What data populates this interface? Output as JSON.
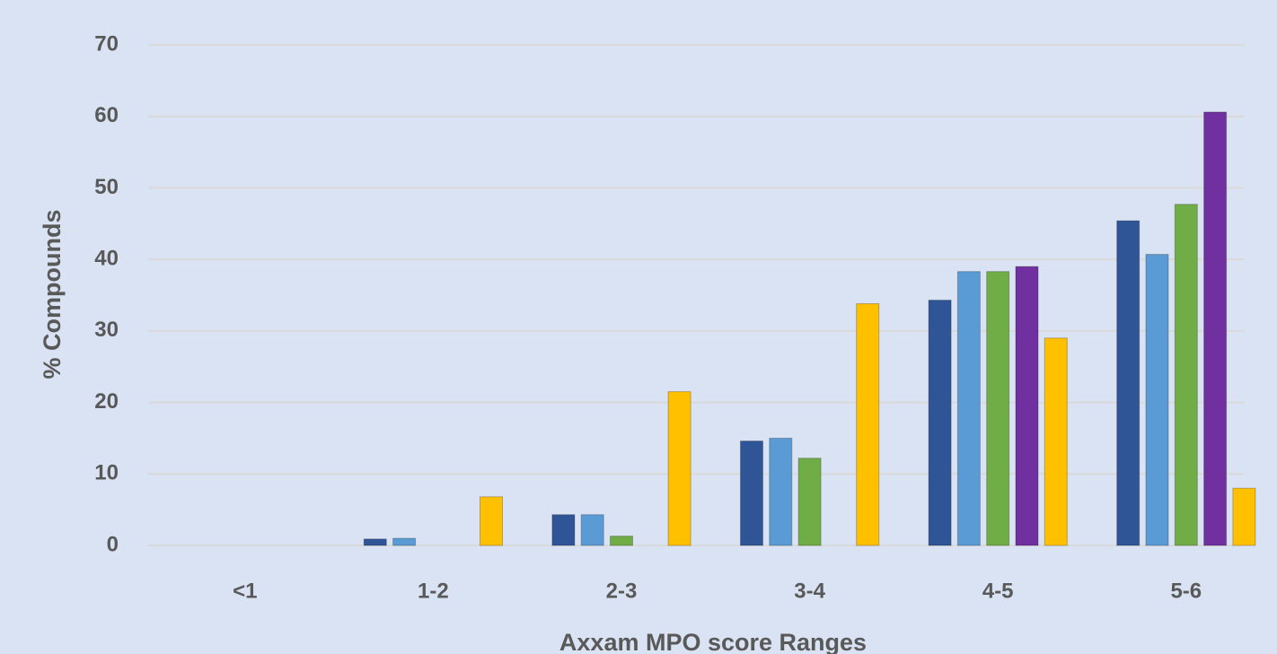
{
  "chart_data": {
    "type": "bar",
    "x_label": "Axxam MPO score Ranges",
    "y_label": "% Compounds",
    "categories": [
      "<1",
      "1-2",
      "2-3",
      "3-4",
      "4-5",
      "5-6"
    ],
    "series": [
      {
        "color": "#2f5597",
        "values": [
          0,
          0.9,
          4.3,
          14.6,
          34.3,
          45.4
        ]
      },
      {
        "color": "#5b9bd5",
        "values": [
          0,
          1,
          4.3,
          15,
          38.3,
          40.7
        ]
      },
      {
        "color": "#70ad47",
        "values": [
          0,
          0,
          1.3,
          12.2,
          38.3,
          47.7
        ]
      },
      {
        "color": "#7030a0",
        "values": [
          0,
          0,
          0,
          0,
          39,
          60.6
        ]
      },
      {
        "color": "#ffc000",
        "values": [
          0,
          6.8,
          21.5,
          33.8,
          29,
          8
        ]
      }
    ],
    "ylim": [
      0,
      70
    ],
    "yticks": [
      0,
      10,
      20,
      30,
      40,
      50,
      60,
      70
    ],
    "grid": true
  }
}
